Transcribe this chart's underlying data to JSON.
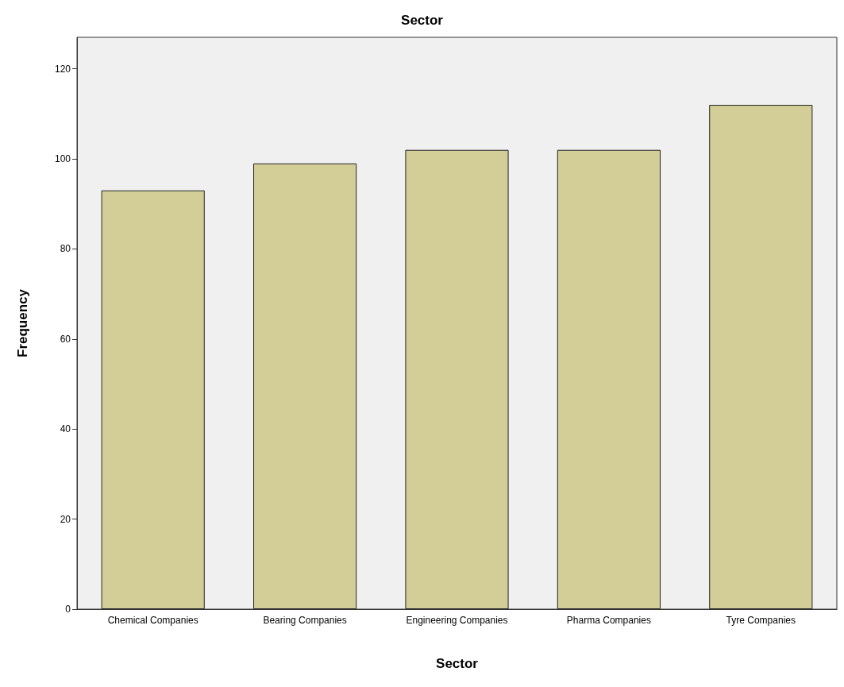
{
  "chart_data": {
    "type": "bar",
    "title": "Sector",
    "xlabel": "Sector",
    "ylabel": "Frequency",
    "categories": [
      "Chemical Companies",
      "Bearing Companies",
      "Engineering Companies",
      "Pharma Companies",
      "Tyre Companies"
    ],
    "values": [
      93,
      99,
      102,
      102,
      112
    ],
    "color": "#d3ce97",
    "ylim": [
      0,
      127
    ],
    "yticks": [
      0,
      20,
      40,
      60,
      80,
      100,
      120
    ],
    "grid": false
  }
}
